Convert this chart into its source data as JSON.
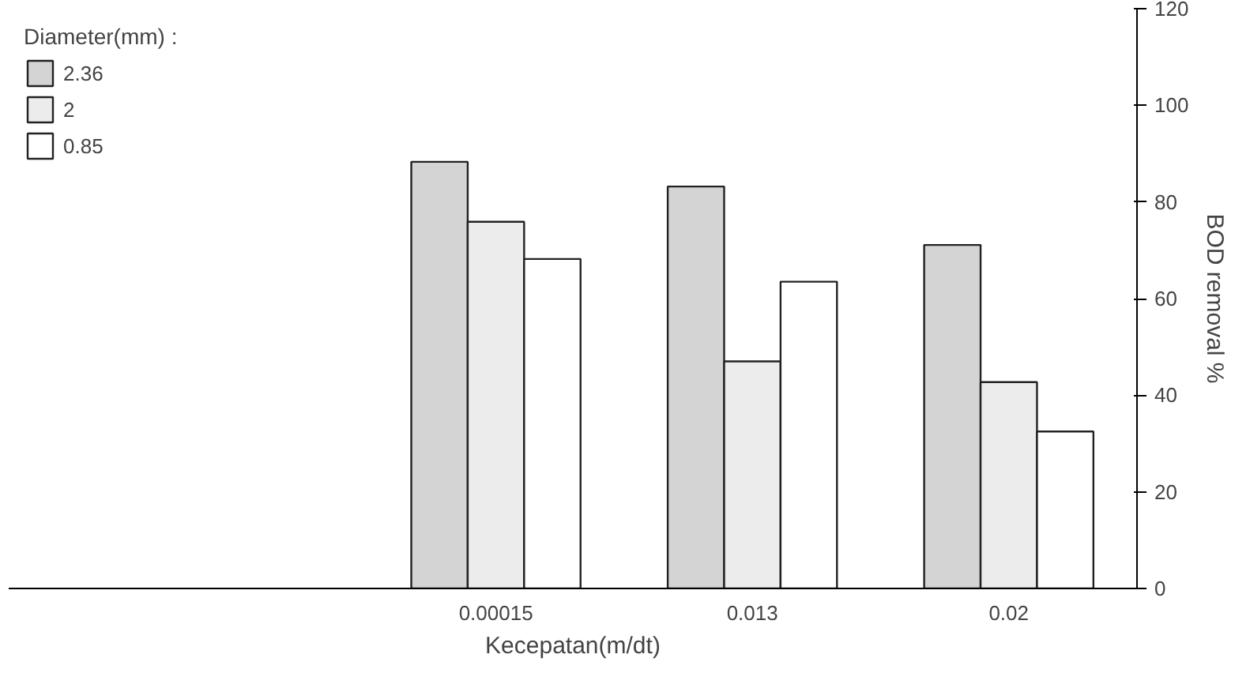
{
  "chart_data": {
    "type": "bar",
    "xlabel": "Kecepatan(m/dt)",
    "ylabel": "BOD removal %",
    "legend_title": "Diameter(mm) :",
    "categories": [
      "0.00015",
      "0.013",
      "0.02"
    ],
    "series": [
      {
        "name": "2.36",
        "color": "#d4d4d4",
        "values": [
          88.3,
          83.2,
          71.1
        ]
      },
      {
        "name": "2",
        "color": "#ececec",
        "values": [
          75.9,
          47,
          42.7
        ]
      },
      {
        "name": "0.85",
        "color": "#ffffff",
        "values": [
          68.2,
          63.5,
          32.5
        ]
      }
    ],
    "ylim": [
      0,
      120
    ],
    "yticks": [
      0,
      20,
      40,
      60,
      80,
      100,
      120
    ],
    "grid": false,
    "legend": "top left"
  }
}
